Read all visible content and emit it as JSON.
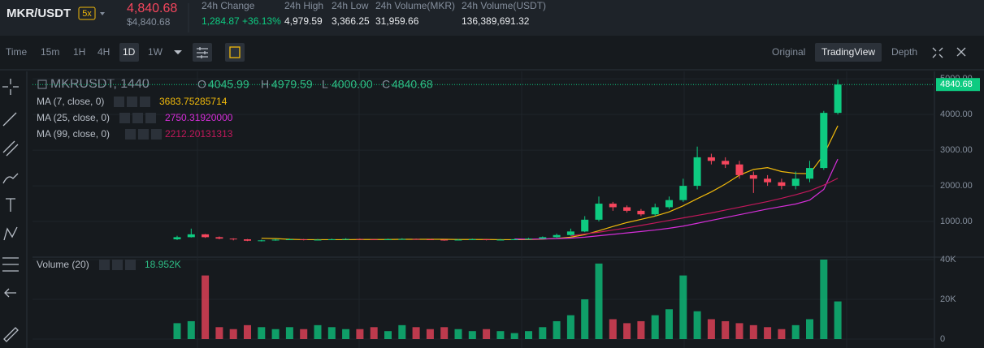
{
  "header": {
    "pair": "MKR/USDT",
    "leverage": "5x",
    "price": "4,840.68",
    "price_usd": "$4,840.68",
    "stats": [
      {
        "label": "24h Change",
        "value": "1,284.87 +36.13%"
      },
      {
        "label": "24h High",
        "value": "4,979.59"
      },
      {
        "label": "24h Low",
        "value": "3,366.25"
      },
      {
        "label": "24h Volume(MKR)",
        "value": "31,959.66"
      },
      {
        "label": "24h Volume(USDT)",
        "value": "136,389,691.32"
      }
    ]
  },
  "toolbar": {
    "intervals": [
      "Time",
      "15m",
      "1H",
      "4H",
      "1D",
      "1W"
    ],
    "views": [
      "Original",
      "TradingView",
      "Depth"
    ]
  },
  "legend": {
    "symbol": "MKRUSDT, 1440",
    "ohlc": [
      {
        "key": "O",
        "value": "4045.99"
      },
      {
        "key": "H",
        "value": "4979.59"
      },
      {
        "key": "L",
        "value": "4000.00"
      },
      {
        "key": "C",
        "value": "4840.68"
      }
    ]
  },
  "chart_data": [
    {
      "type": "candlestick",
      "up_color": "#0ecb81",
      "down_color": "#f6465d",
      "open": [
        500,
        560,
        640,
        560,
        520,
        500,
        460,
        470,
        490,
        500,
        480,
        490,
        500,
        510,
        500,
        490,
        500,
        510,
        500,
        490,
        480,
        490,
        500,
        480,
        490,
        500,
        520,
        560,
        620,
        720,
        1050,
        1500,
        1400,
        1300,
        1200,
        1400,
        1600,
        2000,
        2800,
        2700,
        2600,
        2300,
        2200,
        2100,
        2000,
        2200,
        2500,
        4045.99
      ],
      "high": [
        600,
        800,
        650,
        580,
        530,
        510,
        490,
        510,
        520,
        510,
        510,
        520,
        530,
        520,
        510,
        520,
        530,
        520,
        510,
        500,
        510,
        520,
        510,
        510,
        520,
        540,
        580,
        660,
        800,
        1150,
        1700,
        1550,
        1450,
        1350,
        1500,
        1700,
        2200,
        3100,
        2900,
        2800,
        2700,
        2400,
        2300,
        2200,
        2400,
        2700,
        4100,
        4979.59
      ],
      "low": [
        480,
        550,
        540,
        500,
        470,
        450,
        440,
        460,
        480,
        470,
        470,
        480,
        490,
        490,
        480,
        480,
        490,
        490,
        480,
        460,
        470,
        480,
        470,
        470,
        480,
        500,
        510,
        540,
        600,
        700,
        1000,
        1300,
        1250,
        1150,
        1150,
        1350,
        1550,
        1900,
        2600,
        2500,
        2200,
        1800,
        2000,
        1900,
        1900,
        2100,
        2450,
        4000
      ],
      "close": [
        560,
        640,
        560,
        520,
        500,
        460,
        470,
        490,
        500,
        480,
        490,
        500,
        510,
        500,
        490,
        500,
        510,
        500,
        490,
        480,
        490,
        500,
        480,
        490,
        500,
        520,
        560,
        620,
        720,
        1050,
        1500,
        1400,
        1300,
        1200,
        1400,
        1600,
        2000,
        2800,
        2700,
        2600,
        2300,
        2200,
        2100,
        2000,
        2200,
        2500,
        4045.99,
        4840.68
      ],
      "series": [
        {
          "name": "MA (7, close, 0)",
          "color": "#f0b90b",
          "values": [
            null,
            null,
            null,
            null,
            null,
            null,
            530,
            520,
            500,
            490,
            490,
            490,
            490,
            495,
            495,
            495,
            500,
            500,
            500,
            500,
            495,
            495,
            495,
            490,
            490,
            495,
            505,
            525,
            560,
            630,
            740,
            860,
            970,
            1060,
            1150,
            1270,
            1440,
            1640,
            1830,
            2050,
            2300,
            2460,
            2510,
            2400,
            2350,
            2340,
            2870,
            3683.75285714
          ],
          "value_labels": [
            null,
            null,
            null,
            null,
            null,
            null,
            null,
            null,
            null,
            null,
            null,
            null,
            null,
            null,
            null,
            null,
            null,
            null,
            null,
            null,
            null,
            null,
            null,
            null,
            null,
            null,
            null,
            null,
            null,
            null,
            null,
            null,
            null,
            null,
            null,
            null,
            null,
            null,
            null,
            null,
            null,
            null,
            null,
            null,
            null,
            null,
            null,
            "3683.75285714"
          ]
        },
        {
          "name": "MA (25, close, 0)",
          "color": "#d62ed9",
          "values": [
            null,
            null,
            null,
            null,
            null,
            null,
            null,
            null,
            null,
            null,
            null,
            null,
            null,
            null,
            null,
            null,
            null,
            null,
            null,
            null,
            null,
            null,
            null,
            null,
            510,
            505,
            510,
            520,
            535,
            560,
            600,
            640,
            680,
            720,
            760,
            810,
            870,
            950,
            1030,
            1110,
            1190,
            1270,
            1350,
            1420,
            1490,
            1600,
            1900,
            2750.3192
          ],
          "value_labels": [
            null,
            null,
            null,
            null,
            null,
            null,
            null,
            null,
            null,
            null,
            null,
            null,
            null,
            null,
            null,
            null,
            null,
            null,
            null,
            null,
            null,
            null,
            null,
            null,
            null,
            null,
            null,
            null,
            null,
            null,
            null,
            null,
            null,
            null,
            null,
            null,
            null,
            null,
            null,
            null,
            null,
            null,
            null,
            null,
            null,
            null,
            null,
            "2750.31920000"
          ]
        },
        {
          "name": "MA (99, close, 0)",
          "color": "#c2185b",
          "values": [
            null,
            null,
            null,
            null,
            null,
            null,
            null,
            null,
            null,
            null,
            null,
            null,
            null,
            null,
            null,
            null,
            null,
            null,
            null,
            null,
            null,
            null,
            null,
            null,
            null,
            null,
            null,
            null,
            600,
            650,
            700,
            760,
            820,
            890,
            960,
            1030,
            1100,
            1170,
            1240,
            1320,
            1400,
            1480,
            1560,
            1650,
            1750,
            1860,
            2020,
            2212.20131313
          ],
          "value_labels": [
            null,
            null,
            null,
            null,
            null,
            null,
            null,
            null,
            null,
            null,
            null,
            null,
            null,
            null,
            null,
            null,
            null,
            null,
            null,
            null,
            null,
            null,
            null,
            null,
            null,
            null,
            null,
            null,
            null,
            null,
            null,
            null,
            null,
            null,
            null,
            null,
            null,
            null,
            null,
            null,
            null,
            null,
            null,
            null,
            null,
            null,
            null,
            "2212.20131313"
          ]
        }
      ],
      "ylim": [
        0,
        5050
      ],
      "yticks": [
        {
          "value": 1000,
          "label": "1000.00"
        },
        {
          "value": 2000,
          "label": "2000.00"
        },
        {
          "value": 3000,
          "label": "3000.00"
        },
        {
          "value": 4000,
          "label": "4000.00"
        },
        {
          "value": 5000,
          "label": "5000.00"
        }
      ]
    },
    {
      "type": "bar",
      "title": "Volume (20)",
      "values": [
        8000,
        9000,
        32000,
        6000,
        5000,
        7000,
        6000,
        5000,
        6000,
        5000,
        7000,
        6000,
        5000,
        5000,
        6000,
        4000,
        7000,
        6000,
        5000,
        6000,
        5000,
        4000,
        5000,
        4000,
        3000,
        4000,
        6000,
        9000,
        12000,
        20000,
        38000,
        10000,
        8000,
        9000,
        12000,
        15000,
        32000,
        14000,
        10000,
        9000,
        8000,
        7000,
        6000,
        5000,
        7000,
        10000,
        40000,
        18952
      ],
      "value_labels": [
        null,
        null,
        null,
        null,
        null,
        null,
        null,
        null,
        null,
        null,
        null,
        null,
        null,
        null,
        null,
        null,
        null,
        null,
        null,
        null,
        null,
        null,
        null,
        null,
        null,
        null,
        null,
        null,
        null,
        null,
        null,
        null,
        null,
        null,
        null,
        null,
        null,
        null,
        null,
        null,
        null,
        null,
        null,
        null,
        null,
        null,
        null,
        "18.952K"
      ],
      "ylim": [
        0,
        40000
      ],
      "yticks": [
        0,
        {
          "value": 20000,
          "label": "20K"
        },
        {
          "value": 40000,
          "label": "40K"
        }
      ]
    }
  ]
}
